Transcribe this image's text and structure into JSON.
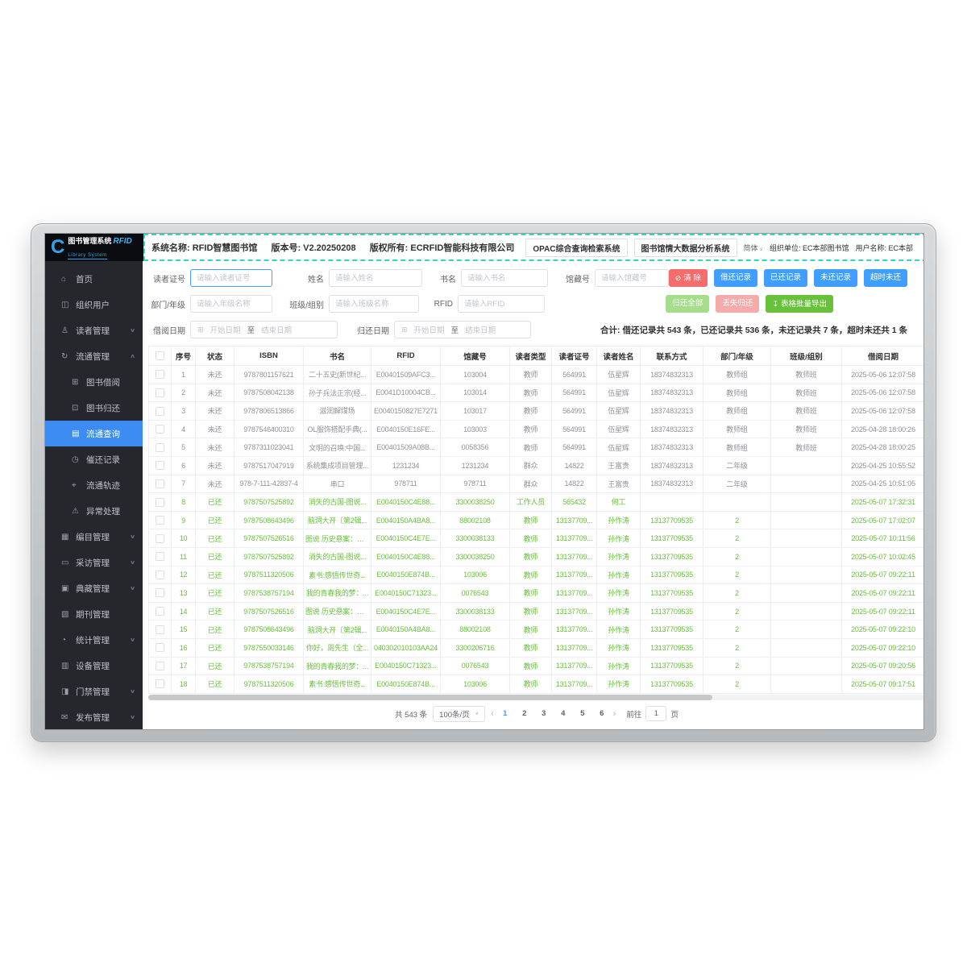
{
  "colors": {
    "primary": "#409EFF",
    "danger": "#F56C6C",
    "success": "#67C23A",
    "returned_text": "#67C23A",
    "unreturned_text": "#909399",
    "sidebar_bg": "#25272c",
    "sidebar_active": "#3d8cf2",
    "header_dash": "#33d5bf",
    "logo_blue": "#2ba8f0"
  },
  "header": {
    "logo_title": "图书管理系统",
    "logo_rfid": "RFID",
    "logo_sub": "Library System",
    "seg_system": "系统名称: RFID智慧图书馆",
    "seg_version": "版本号: V2.20250208",
    "seg_copyright": "版权所有: ECRFID智能科技有限公司",
    "nav_opac": "OPAC综合查询检索系统",
    "nav_bigdata": "图书馆情大数据分析系统",
    "lang": "简体",
    "org_label": "组织单位: EC本部图书馆",
    "user_label": "用户名称: EC本部"
  },
  "sidebar": {
    "items": [
      {
        "id": "home",
        "label": "首页",
        "glyph": "⌂",
        "icon": "home",
        "sub": false,
        "active": false,
        "chevron": null
      },
      {
        "id": "org-users",
        "label": "组织用户",
        "glyph": "◫",
        "icon": "org-users",
        "sub": false,
        "active": false,
        "chevron": null
      },
      {
        "id": "reader-mgmt",
        "label": "读者管理",
        "glyph": "♙",
        "icon": "reader",
        "sub": false,
        "active": false,
        "chevron": "down"
      },
      {
        "id": "circulation-mgmt",
        "label": "流通管理",
        "glyph": "↻",
        "icon": "circulation",
        "sub": false,
        "active": false,
        "chevron": "up"
      },
      {
        "id": "book-borrow",
        "label": "图书借阅",
        "glyph": "⊞",
        "icon": "book-borrow",
        "sub": true,
        "active": false,
        "chevron": null
      },
      {
        "id": "book-return",
        "label": "图书归还",
        "glyph": "⊡",
        "icon": "book-return",
        "sub": true,
        "active": false,
        "chevron": null
      },
      {
        "id": "circulation-query",
        "label": "流通查询",
        "glyph": "▤",
        "icon": "clipboard",
        "sub": true,
        "active": true,
        "chevron": null
      },
      {
        "id": "recall-records",
        "label": "催还记录",
        "glyph": "◷",
        "icon": "alarm-clock",
        "sub": true,
        "active": false,
        "chevron": null
      },
      {
        "id": "circulation-track",
        "label": "流通轨迹",
        "glyph": "⌖",
        "icon": "location",
        "sub": true,
        "active": false,
        "chevron": null
      },
      {
        "id": "exception-handle",
        "label": "异常处理",
        "glyph": "⚠",
        "icon": "warning",
        "sub": true,
        "active": false,
        "chevron": null
      },
      {
        "id": "catalog-mgmt",
        "label": "编目管理",
        "glyph": "▦",
        "icon": "catalog",
        "sub": false,
        "active": false,
        "chevron": "down"
      },
      {
        "id": "acquisition-mgmt",
        "label": "采访管理",
        "glyph": "▭",
        "icon": "cart",
        "sub": false,
        "active": false,
        "chevron": "down"
      },
      {
        "id": "collection-mgmt",
        "label": "典藏管理",
        "glyph": "▣",
        "icon": "collection",
        "sub": false,
        "active": false,
        "chevron": "down"
      },
      {
        "id": "periodical-mgmt",
        "label": "期刊管理",
        "glyph": "▧",
        "icon": "periodical",
        "sub": false,
        "active": false,
        "chevron": null
      },
      {
        "id": "statistics-mgmt",
        "label": "统计管理",
        "glyph": "◔",
        "icon": "pie-chart",
        "sub": false,
        "active": false,
        "chevron": "down"
      },
      {
        "id": "device-mgmt",
        "label": "设备管理",
        "glyph": "▥",
        "icon": "device",
        "sub": false,
        "active": false,
        "chevron": null
      },
      {
        "id": "gate-mgmt",
        "label": "门禁管理",
        "glyph": "◨",
        "icon": "gate",
        "sub": false,
        "active": false,
        "chevron": "down"
      },
      {
        "id": "publish-mgmt",
        "label": "发布管理",
        "glyph": "✉",
        "icon": "publish",
        "sub": false,
        "active": false,
        "chevron": "down"
      }
    ]
  },
  "filters": {
    "reader_no": {
      "label": "读者证号",
      "placeholder": "请输入读者证号"
    },
    "name": {
      "label": "姓名",
      "placeholder": "请输入姓名"
    },
    "book": {
      "label": "书名",
      "placeholder": "请输入书名"
    },
    "collection": {
      "label": "馆藏号",
      "placeholder": "请输入馆藏号"
    },
    "dept": {
      "label": "部门/年级",
      "placeholder": "请输入年级名称"
    },
    "class_group": {
      "label": "班级/组别",
      "placeholder": "请输入班级名称"
    },
    "rfid": {
      "label": "RFID",
      "placeholder": "请输入RFID"
    },
    "borrow_date": {
      "label": "借阅日期",
      "start": "开始日期",
      "to": "至",
      "end": "结束日期"
    },
    "return_date": {
      "label": "归还日期",
      "start": "开始日期",
      "to": "至",
      "end": "结束日期"
    }
  },
  "buttons": {
    "clear": "清 除",
    "borrow_return": "借还记录",
    "returned": "已还记录",
    "not_returned": "未还记录",
    "overdue": "超时未还",
    "return_all": "归还全部",
    "lost_return": "丢失归还",
    "export": "表格批量导出"
  },
  "summary": "合计: 借还记录共 543 条，已还记录共 536 条，未还记录共 7 条，超时未还共 1 条",
  "table": {
    "returned_status": "已还",
    "columns": [
      "序号",
      "状态",
      "ISBN",
      "书名",
      "RFID",
      "馆藏号",
      "读者类型",
      "读者证号",
      "读者姓名",
      "联系方式",
      "部门/年级",
      "班级/组别",
      "借阅日期"
    ],
    "rows": [
      [
        "1",
        "未还",
        "9787801157621",
        "二十五史(新世纪...",
        "E00401509AFC3...",
        "103004",
        "教师",
        "564991",
        "伍星辉",
        "18374832313",
        "教师组",
        "教师班",
        "2025-05-06 12:07:58"
      ],
      [
        "2",
        "未还",
        "9787508042138",
        "孙子兵法正宗(经...",
        "E0041D10004CB...",
        "103014",
        "教师",
        "564991",
        "伍星辉",
        "18374832313",
        "教师组",
        "教师班",
        "2025-05-06 12:07:58"
      ],
      [
        "3",
        "未还",
        "9787806513866",
        "滋润解煤场",
        "E0040150827E7271",
        "103017",
        "教师",
        "564991",
        "伍星辉",
        "18374832313",
        "教师组",
        "教师班",
        "2025-05-06 12:07:58"
      ],
      [
        "4",
        "未还",
        "9787546400310",
        "OL服饰搭配手典(...",
        "E0040150E16FE...",
        "103003",
        "教师",
        "564991",
        "伍星辉",
        "18374832313",
        "教师组",
        "教师班",
        "2025-04-28 18:00:26"
      ],
      [
        "5",
        "未还",
        "9787311023041",
        "文明的召唤:中国...",
        "E00401509A08B...",
        "0058356",
        "教师",
        "564991",
        "伍星辉",
        "18374832313",
        "教师组",
        "教师班",
        "2025-04-28 18:00:25"
      ],
      [
        "6",
        "未还",
        "9787517047919",
        "系统集成项目管理...",
        "1231234",
        "1231234",
        "群众",
        "14822",
        "王富贵",
        "18374832313",
        "二年级",
        "",
        "2025-04-25 10:55:52"
      ],
      [
        "7",
        "未还",
        "978-7-111-42837-4",
        "串口",
        "978711",
        "978711",
        "群众",
        "14822",
        "王富贵",
        "18374832313",
        "二年级",
        "",
        "2025-04-25 10:51:05"
      ],
      [
        "8",
        "已还",
        "9787507525892",
        "消失的古国-图说...",
        "E0040150C4E88...",
        "3300038250",
        "工作人员",
        "565432",
        "何工",
        "",
        "",
        "",
        "2025-05-07 17:32:31"
      ],
      [
        "9",
        "已还",
        "9787508643496",
        "脑洞大开〔第2辑...",
        "E0040150A4BA8...",
        "88002108",
        "教师",
        "13137709...",
        "孙作涛",
        "13137709535",
        "2",
        "",
        "2025-05-07 17:02:07"
      ],
      [
        "10",
        "已还",
        "9787507526516",
        "图说 历史悬案：历...",
        "E0040150C4E7E...",
        "3300038133",
        "教师",
        "13137709...",
        "孙作涛",
        "13137709535",
        "2",
        "",
        "2025-05-07 10:11:56"
      ],
      [
        "11",
        "已还",
        "9787507525892",
        "消失的古国-图说...",
        "E0040150C4E88...",
        "3300038250",
        "教师",
        "13137709...",
        "孙作涛",
        "13137709535",
        "2",
        "",
        "2025-05-07 10:02:45"
      ],
      [
        "12",
        "已还",
        "9787511320506",
        "素书:感悟传世奇...",
        "E0040150E874B...",
        "103006",
        "教师",
        "13137709...",
        "孙作涛",
        "13137709535",
        "2",
        "",
        "2025-05-07 09:22:11"
      ],
      [
        "13",
        "已还",
        "9787538757194",
        "我的青春我的梦：...",
        "E0040150C71323...",
        "0076543",
        "教师",
        "13137709...",
        "孙作涛",
        "13137709535",
        "2",
        "",
        "2025-05-07 09:22:11"
      ],
      [
        "14",
        "已还",
        "9787507526516",
        "图说 历史悬案：历...",
        "E0040150C4E7E...",
        "3300038133",
        "教师",
        "13137709...",
        "孙作涛",
        "13137709535",
        "2",
        "",
        "2025-05-07 09:22:11"
      ],
      [
        "15",
        "已还",
        "9787508643496",
        "脑洞大开〔第2辑...",
        "E0040150A4BA8...",
        "88002108",
        "教师",
        "13137709...",
        "孙作涛",
        "13137709535",
        "2",
        "",
        "2025-05-07 09:22:10"
      ],
      [
        "16",
        "已还",
        "9787550033146",
        "你好，周先生（全...",
        "040302010103AA24",
        "3300206716",
        "教师",
        "13137709...",
        "孙作涛",
        "13137709535",
        "2",
        "",
        "2025-05-07 09:22:10"
      ],
      [
        "17",
        "已还",
        "9787538757194",
        "我的青春我的梦：...",
        "E0040150C71323...",
        "0076543",
        "教师",
        "13137709...",
        "孙作涛",
        "13137709535",
        "2",
        "",
        "2025-05-07 09:20:56"
      ],
      [
        "18",
        "已还",
        "9787511320506",
        "素书:感悟传世奇...",
        "E0040150E874B...",
        "103006",
        "教师",
        "13137709...",
        "孙作涛",
        "13137709535",
        "2",
        "",
        "2025-05-07 09:17:51"
      ]
    ]
  },
  "pagination": {
    "total": "共 543 条",
    "page_size": "100条/页",
    "pages": [
      "1",
      "2",
      "3",
      "4",
      "5",
      "6"
    ],
    "active_page": "1",
    "goto_label": "前往",
    "goto_value": "1",
    "page_suffix": "页"
  }
}
